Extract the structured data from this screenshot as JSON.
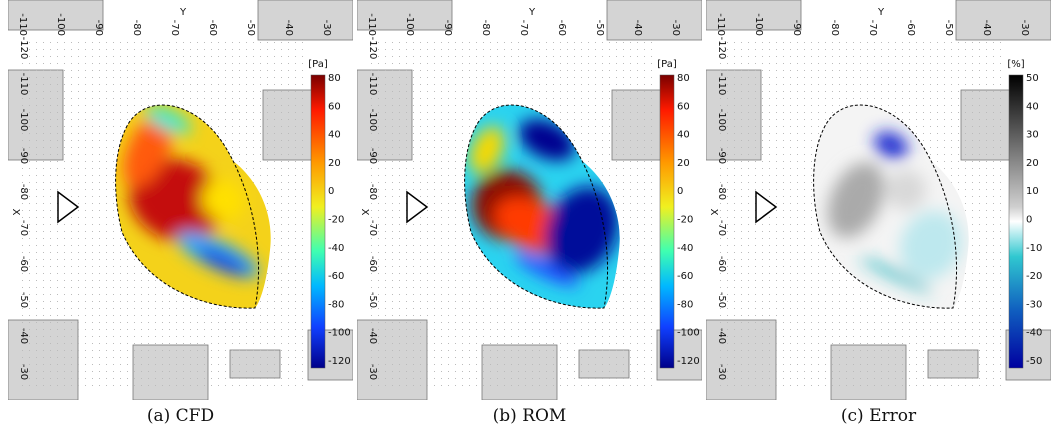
{
  "panels": [
    {
      "caption": "(a) CFD",
      "top_axis_label": "Y",
      "left_axis_label": "X",
      "top_ticks": [
        "-110",
        "-100",
        "-90",
        "-80",
        "-70",
        "-60",
        "-50",
        "-40",
        "-30"
      ],
      "left_ticks": [
        "-120",
        "-110",
        "-100",
        "-90",
        "-80",
        "-70",
        "-60",
        "-50",
        "-40",
        "-30"
      ],
      "colorbar": {
        "unit": "[Pa]",
        "ticks": [
          "80",
          "60",
          "40",
          "20",
          "0",
          "-20",
          "-40",
          "-60",
          "-80",
          "-100",
          "-120"
        ]
      }
    },
    {
      "caption": "(b) ROM",
      "top_axis_label": "Y",
      "left_axis_label": "X",
      "top_ticks": [
        "-110",
        "-100",
        "-90",
        "-80",
        "-70",
        "-60",
        "-50",
        "-40",
        "-30"
      ],
      "left_ticks": [
        "-120",
        "-110",
        "-100",
        "-90",
        "-80",
        "-70",
        "-60",
        "-50",
        "-40",
        "-30"
      ],
      "colorbar": {
        "unit": "[Pa]",
        "ticks": [
          "80",
          "60",
          "40",
          "20",
          "0",
          "-20",
          "-40",
          "-60",
          "-80",
          "-100",
          "-120"
        ]
      }
    },
    {
      "caption": "(c) Error",
      "top_axis_label": "Y",
      "left_axis_label": "X",
      "top_ticks": [
        "-110",
        "-100",
        "-90",
        "-80",
        "-70",
        "-60",
        "-50",
        "-40",
        "-30"
      ],
      "left_ticks": [
        "-120",
        "-110",
        "-100",
        "-90",
        "-80",
        "-70",
        "-60",
        "-50",
        "-40",
        "-30"
      ],
      "colorbar": {
        "unit": "[%]",
        "ticks": [
          "50",
          "40",
          "30",
          "20",
          "10",
          "0",
          "-10",
          "-20",
          "-30",
          "-40",
          "-50"
        ]
      }
    }
  ]
}
